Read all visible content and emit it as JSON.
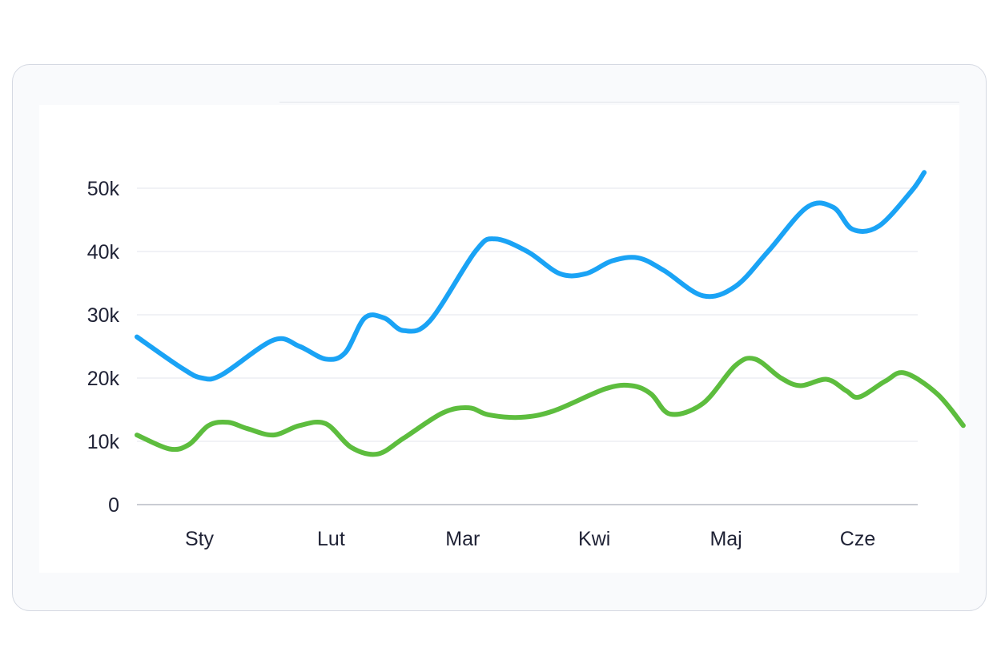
{
  "chart_data": {
    "type": "line",
    "title": "",
    "xlabel": "",
    "ylabel": "",
    "categories": [
      "Sty",
      "Lut",
      "Mar",
      "Kwi",
      "Maj",
      "Cze"
    ],
    "ylim": [
      0,
      50000
    ],
    "yticks": [
      0,
      10000,
      20000,
      30000,
      40000,
      50000
    ],
    "ytick_labels": [
      "0",
      "10k",
      "20k",
      "30k",
      "40k",
      "50k"
    ],
    "grid": true,
    "legend": "none",
    "x_range": [
      0.5,
      6.5
    ],
    "series": [
      {
        "color": "#1aa3f5",
        "points": [
          [
            0.5,
            26500
          ],
          [
            0.85,
            21500
          ],
          [
            1.0,
            20000
          ],
          [
            1.15,
            20500
          ],
          [
            1.55,
            26000
          ],
          [
            1.75,
            25000
          ],
          [
            1.95,
            23000
          ],
          [
            2.1,
            24000
          ],
          [
            2.25,
            29500
          ],
          [
            2.4,
            29500
          ],
          [
            2.55,
            27500
          ],
          [
            2.75,
            29000
          ],
          [
            3.1,
            40000
          ],
          [
            3.25,
            42000
          ],
          [
            3.5,
            40000
          ],
          [
            3.75,
            36500
          ],
          [
            3.95,
            36500
          ],
          [
            4.15,
            38500
          ],
          [
            4.35,
            39000
          ],
          [
            4.55,
            37000
          ],
          [
            4.85,
            33000
          ],
          [
            5.1,
            34500
          ],
          [
            5.35,
            40000
          ],
          [
            5.65,
            47000
          ],
          [
            5.85,
            47000
          ],
          [
            6.0,
            43500
          ],
          [
            6.2,
            44000
          ],
          [
            6.45,
            49500
          ],
          [
            6.55,
            52500
          ]
        ]
      },
      {
        "color": "#5dbd3e",
        "points": [
          [
            0.5,
            11000
          ],
          [
            0.75,
            8800
          ],
          [
            0.9,
            9500
          ],
          [
            1.05,
            12500
          ],
          [
            1.2,
            13000
          ],
          [
            1.35,
            12000
          ],
          [
            1.55,
            11000
          ],
          [
            1.75,
            12500
          ],
          [
            1.95,
            12800
          ],
          [
            2.15,
            9000
          ],
          [
            2.35,
            8000
          ],
          [
            2.55,
            10500
          ],
          [
            2.85,
            14500
          ],
          [
            3.05,
            15300
          ],
          [
            3.2,
            14200
          ],
          [
            3.45,
            13800
          ],
          [
            3.7,
            14800
          ],
          [
            4.1,
            18300
          ],
          [
            4.3,
            18800
          ],
          [
            4.45,
            17500
          ],
          [
            4.6,
            14300
          ],
          [
            4.85,
            16000
          ],
          [
            5.1,
            22000
          ],
          [
            5.25,
            23000
          ],
          [
            5.45,
            20000
          ],
          [
            5.6,
            18800
          ],
          [
            5.8,
            19800
          ],
          [
            5.95,
            18000
          ],
          [
            6.05,
            17000
          ],
          [
            6.25,
            19500
          ],
          [
            6.4,
            20800
          ],
          [
            6.65,
            17500
          ],
          [
            6.85,
            12500
          ]
        ]
      }
    ]
  }
}
